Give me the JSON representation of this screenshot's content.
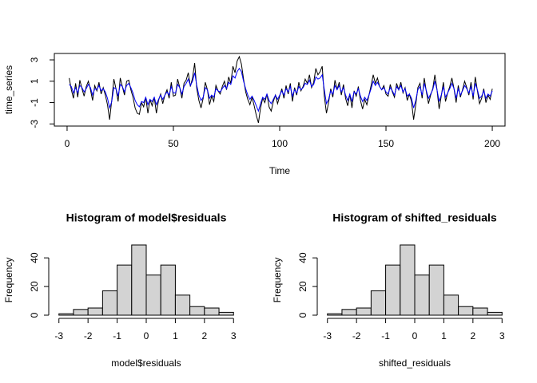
{
  "chart_data": [
    {
      "type": "line",
      "x_label": "Time",
      "y_label": "time_series",
      "x": [
        1,
        2,
        3,
        4,
        5,
        6,
        7,
        8,
        9,
        10,
        11,
        12,
        13,
        14,
        15,
        16,
        17,
        18,
        19,
        20,
        21,
        22,
        23,
        24,
        25,
        26,
        27,
        28,
        29,
        30,
        31,
        32,
        33,
        34,
        35,
        36,
        37,
        38,
        39,
        40,
        41,
        42,
        43,
        44,
        45,
        46,
        47,
        48,
        49,
        50,
        51,
        52,
        53,
        54,
        55,
        56,
        57,
        58,
        59,
        60,
        61,
        62,
        63,
        64,
        65,
        66,
        67,
        68,
        69,
        70,
        71,
        72,
        73,
        74,
        75,
        76,
        77,
        78,
        79,
        80,
        81,
        82,
        83,
        84,
        85,
        86,
        87,
        88,
        89,
        90,
        91,
        92,
        93,
        94,
        95,
        96,
        97,
        98,
        99,
        100,
        101,
        102,
        103,
        104,
        105,
        106,
        107,
        108,
        109,
        110,
        111,
        112,
        113,
        114,
        115,
        116,
        117,
        118,
        119,
        120,
        121,
        122,
        123,
        124,
        125,
        126,
        127,
        128,
        129,
        130,
        131,
        132,
        133,
        134,
        135,
        136,
        137,
        138,
        139,
        140,
        141,
        142,
        143,
        144,
        145,
        146,
        147,
        148,
        149,
        150,
        151,
        152,
        153,
        154,
        155,
        156,
        157,
        158,
        159,
        160,
        161,
        162,
        163,
        164,
        165,
        166,
        167,
        168,
        169,
        170,
        171,
        172,
        173,
        174,
        175,
        176,
        177,
        178,
        179,
        180,
        181,
        182,
        183,
        184,
        185,
        186,
        187,
        188,
        189,
        190,
        191,
        192,
        193,
        194,
        195,
        196,
        197,
        198,
        199,
        200
      ],
      "series": [
        {
          "color": "#000000",
          "values": [
            1.3,
            0.2,
            -0.6,
            0.8,
            -0.5,
            1.1,
            0.3,
            -0.4,
            0.5,
            1.0,
            0.2,
            -0.8,
            0.6,
            0.1,
            0.9,
            -0.2,
            0.4,
            -0.3,
            -1.2,
            -2.6,
            -0.8,
            1.2,
            0.3,
            -0.9,
            1.3,
            0.5,
            -0.3,
            1.0,
            1.1,
            0.2,
            -0.5,
            -1.5,
            -2.0,
            -2.1,
            -1.0,
            -1.4,
            -0.5,
            -2.0,
            -0.7,
            -1.3,
            -0.5,
            -2.0,
            -0.8,
            -0.2,
            -1.1,
            -0.3,
            0.2,
            -0.6,
            0.9,
            -0.4,
            -0.3,
            1.2,
            0.4,
            -0.6,
            0.8,
            1.1,
            1.8,
            0.5,
            1.3,
            2.7,
            0.3,
            -0.8,
            -1.5,
            -0.6,
            0.9,
            0.2,
            -1.2,
            -0.4,
            -0.9,
            0.6,
            0.1,
            -0.2,
            0.5,
            1.0,
            0.2,
            1.4,
            0.8,
            2.4,
            1.8,
            2.9,
            3.3,
            2.6,
            1.2,
            0.0,
            -0.7,
            -1.2,
            -0.5,
            -1.3,
            -2.2,
            -2.9,
            -1.5,
            -0.6,
            -1.0,
            -0.2,
            -1.4,
            -1.8,
            -0.9,
            -0.3,
            -1.1,
            -0.4,
            0.3,
            -0.6,
            0.6,
            -0.2,
            0.8,
            -0.9,
            0.4,
            -0.3,
            0.9,
            0.1,
            0.5,
            1.2,
            0.8,
            1.6,
            0.4,
            0.9,
            2.2,
            1.6,
            1.9,
            2.4,
            -0.4,
            -2.0,
            -1.0,
            0.3,
            -0.5,
            1.1,
            0.2,
            0.9,
            -0.3,
            0.7,
            -0.6,
            -1.3,
            -0.2,
            -1.5,
            0.1,
            -0.4,
            0.5,
            -0.8,
            -1.6,
            -0.7,
            -1.2,
            -0.3,
            0.6,
            1.6,
            0.8,
            1.3,
            0.5,
            0.2,
            0.6,
            -0.2,
            -0.4,
            0.7,
            0.0,
            -0.5,
            0.8,
            0.2,
            0.9,
            -0.1,
            0.4,
            -0.8,
            -0.2,
            -0.9,
            -2.6,
            -1.2,
            0.4,
            0.8,
            -0.6,
            1.3,
            0.0,
            -1.1,
            -0.3,
            0.3,
            1.6,
            0.2,
            -1.6,
            -0.4,
            0.9,
            -0.9,
            -0.1,
            0.5,
            1.3,
            0.3,
            -1.0,
            0.6,
            -0.5,
            0.2,
            1.0,
            0.4,
            -0.3,
            0.9,
            -0.7,
            1.4,
            0.1,
            -1.1,
            -0.6,
            0.3,
            -1.0,
            -0.3,
            -0.7,
            0.3
          ]
        },
        {
          "color": "#0000ff",
          "values": [
            0.7,
            0.5,
            -0.1,
            0.4,
            -0.1,
            0.6,
            0.4,
            0.0,
            0.3,
            0.7,
            0.4,
            -0.3,
            0.3,
            0.2,
            0.6,
            0.1,
            0.3,
            0.0,
            -0.6,
            -1.5,
            -0.9,
            0.4,
            0.3,
            -0.4,
            0.7,
            0.5,
            0.0,
            0.6,
            0.8,
            0.4,
            -0.1,
            -0.8,
            -1.2,
            -1.4,
            -0.9,
            -1.0,
            -0.5,
            -1.2,
            -0.7,
            -0.9,
            -0.5,
            -1.2,
            -0.7,
            -0.3,
            -0.7,
            -0.3,
            0.0,
            -0.3,
            0.5,
            -0.1,
            -0.1,
            0.7,
            0.4,
            -0.2,
            0.5,
            0.8,
            1.2,
            0.6,
            1.0,
            1.8,
            0.6,
            -0.3,
            -0.8,
            -0.5,
            0.4,
            0.2,
            -0.6,
            -0.3,
            -0.5,
            0.3,
            0.1,
            0.0,
            0.3,
            0.6,
            0.3,
            0.9,
            0.7,
            1.5,
            1.3,
            1.9,
            2.2,
            1.9,
            1.0,
            0.3,
            -0.3,
            -0.7,
            -0.4,
            -0.8,
            -1.3,
            -1.8,
            -1.1,
            -0.5,
            -0.7,
            -0.2,
            -0.8,
            -1.1,
            -0.7,
            -0.3,
            -0.7,
            -0.3,
            0.1,
            -0.3,
            0.3,
            0.0,
            0.5,
            -0.4,
            0.2,
            -0.1,
            0.5,
            0.2,
            0.4,
            0.8,
            0.7,
            1.1,
            0.5,
            0.7,
            1.4,
            1.2,
            1.3,
            1.6,
            0.2,
            -1.1,
            -0.7,
            0.1,
            -0.2,
            0.6,
            0.2,
            0.6,
            0.0,
            0.4,
            -0.3,
            -0.8,
            -0.2,
            -0.9,
            0.0,
            -0.2,
            0.3,
            -0.4,
            -0.9,
            -0.5,
            -0.8,
            -0.3,
            0.3,
            1.0,
            0.6,
            0.9,
            0.5,
            0.2,
            0.4,
            0.0,
            -0.2,
            0.4,
            0.1,
            -0.3,
            0.5,
            0.2,
            0.6,
            0.0,
            0.3,
            -0.4,
            -0.2,
            -0.6,
            -1.5,
            -0.8,
            0.2,
            0.5,
            -0.3,
            0.8,
            0.1,
            -0.6,
            -0.2,
            0.2,
            1.0,
            0.2,
            -0.9,
            -0.3,
            0.5,
            -0.5,
            -0.1,
            0.3,
            0.8,
            0.3,
            -0.6,
            0.3,
            -0.3,
            0.1,
            0.6,
            0.3,
            -0.1,
            0.5,
            -0.4,
            0.8,
            0.2,
            -0.6,
            -0.4,
            0.1,
            -0.6,
            -0.2,
            -0.4,
            0.1
          ]
        }
      ],
      "xlim": [
        -6,
        206
      ],
      "xticks": [
        0,
        50,
        100,
        150,
        200
      ],
      "ylim": [
        -3.2,
        3.6
      ],
      "yticks": [
        -3,
        -1,
        1,
        3
      ]
    },
    {
      "type": "histogram",
      "title": "Histogram of model$residuals",
      "x_label": "model$residuals",
      "y_label": "Frequency",
      "bins": [
        -3,
        -2.5,
        -2,
        -1.5,
        -1,
        -0.5,
        0,
        0.5,
        1,
        1.5,
        2,
        2.5,
        3
      ],
      "values": [
        1,
        4,
        5,
        17,
        35,
        49,
        28,
        35,
        14,
        6,
        5,
        2
      ],
      "color": "#d3d3d3",
      "xlim": [
        -3.24,
        3.24
      ],
      "xticks": [
        -3,
        -2,
        -1,
        0,
        1,
        2,
        3
      ],
      "ylim": [
        0,
        49
      ],
      "yticks": [
        0,
        20,
        40
      ]
    },
    {
      "type": "histogram",
      "title": "Histogram of shifted_residuals",
      "x_label": "shifted_residuals",
      "y_label": "Frequency",
      "bins": [
        -3,
        -2.5,
        -2,
        -1.5,
        -1,
        -0.5,
        0,
        0.5,
        1,
        1.5,
        2,
        2.5,
        3
      ],
      "values": [
        1,
        4,
        5,
        17,
        35,
        49,
        28,
        35,
        14,
        6,
        5,
        2
      ],
      "color": "#d3d3d3",
      "xlim": [
        -3.24,
        3.24
      ],
      "xticks": [
        -3,
        -2,
        -1,
        0,
        1,
        2,
        3
      ],
      "ylim": [
        0,
        49
      ],
      "yticks": [
        0,
        20,
        40
      ]
    }
  ]
}
